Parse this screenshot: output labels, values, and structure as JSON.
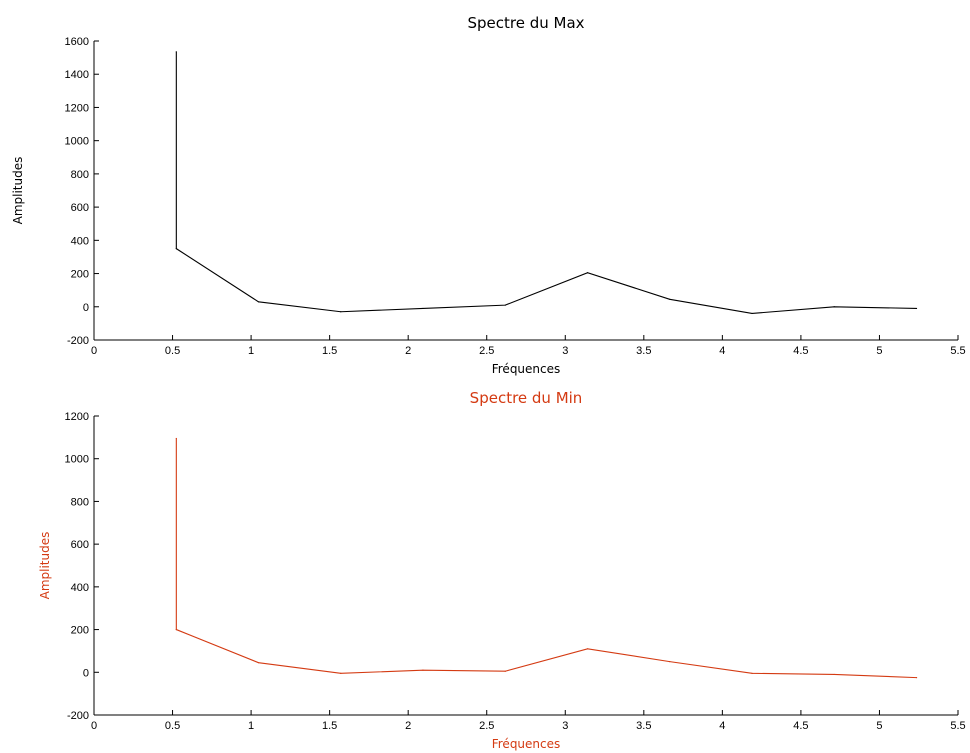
{
  "chart_data": [
    {
      "type": "line",
      "title": "Spectre du Max",
      "xlabel": "Fréquences",
      "ylabel": "Amplitudes",
      "color": "#000000",
      "xlim": [
        0,
        5.5
      ],
      "ylim": [
        -200,
        1600
      ],
      "xticks": [
        0,
        0.5,
        1,
        1.5,
        2,
        2.5,
        3,
        3.5,
        4,
        4.5,
        5,
        5.5
      ],
      "yticks": [
        -200,
        0,
        200,
        400,
        600,
        800,
        1000,
        1200,
        1400,
        1600
      ],
      "grid": false,
      "series": [
        {
          "x": [
            0.524,
            0.524,
            1.047,
            1.571,
            2.094,
            2.618,
            3.142,
            3.665,
            4.189,
            4.712,
            5.236
          ],
          "y": [
            1535,
            350,
            30,
            -30,
            -10,
            10,
            205,
            45,
            -40,
            0,
            -10
          ]
        }
      ]
    },
    {
      "type": "line",
      "title": "Spectre du Min",
      "xlabel": "Fréquences",
      "ylabel": "Amplitudes",
      "color": "#d43a12",
      "xlim": [
        0,
        5.5
      ],
      "ylim": [
        -200,
        1200
      ],
      "xticks": [
        0,
        0.5,
        1,
        1.5,
        2,
        2.5,
        3,
        3.5,
        4,
        4.5,
        5,
        5.5
      ],
      "yticks": [
        -200,
        0,
        200,
        400,
        600,
        800,
        1000,
        1200
      ],
      "grid": false,
      "series": [
        {
          "x": [
            0.524,
            0.524,
            1.047,
            1.571,
            2.094,
            2.618,
            3.142,
            3.665,
            4.189,
            4.712,
            5.236
          ],
          "y": [
            1095,
            200,
            45,
            -5,
            10,
            5,
            110,
            50,
            -5,
            -10,
            -25
          ]
        }
      ]
    }
  ]
}
